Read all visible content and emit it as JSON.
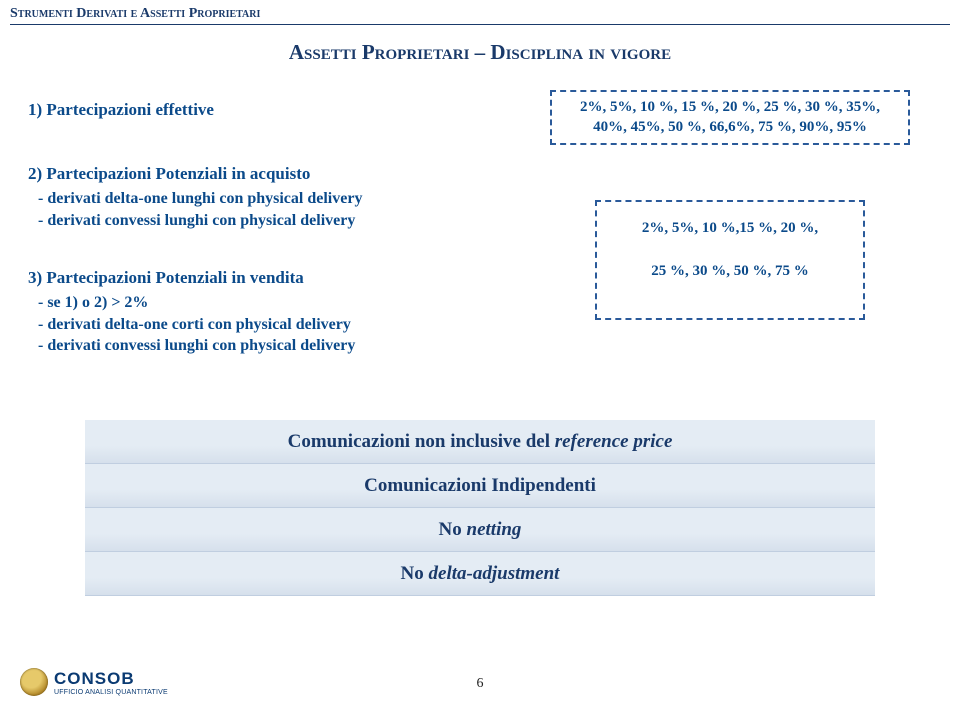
{
  "header": "Strumenti Derivati e Assetti Proprietari",
  "title": "Assetti Proprietari – Disciplina in vigore",
  "section1": {
    "head": "1)\tPartecipazioni effettive"
  },
  "section2": {
    "head": "2)\tPartecipazioni Potenziali in acquisto",
    "a": "- derivati delta-one lunghi con physical delivery",
    "b": "- derivati convessi lunghi con physical delivery"
  },
  "section3": {
    "head": "3)\tPartecipazioni Potenziali in vendita",
    "a": "- se 1) o 2) > 2%",
    "b": "- derivati delta-one corti con physical delivery",
    "c": "- derivati convessi lunghi con physical delivery"
  },
  "box1": {
    "line1": "2%, 5%, 10 %, 15 %, 20 %, 25 %, 30 %, 35%,",
    "line2": "40%, 45%, 50 %, 66,6%, 75 %, 90%, 95%"
  },
  "box2": {
    "line1": "2%, 5%, 10 %,15 %, 20 %,",
    "line2": "25 %, 30 %, 50 %, 75 %"
  },
  "banners": {
    "b1_pre": "Comunicazioni non inclusive del ",
    "b1_em": "reference price",
    "b2": "Comunicazioni Indipendenti",
    "b3_pre": "No ",
    "b3_em": "netting",
    "b4_pre": "No ",
    "b4_em": "delta-adjustment"
  },
  "logo": {
    "main": "CONSOB",
    "sub": "UFFICIO ANALISI QUANTITATIVE"
  },
  "page": "6"
}
